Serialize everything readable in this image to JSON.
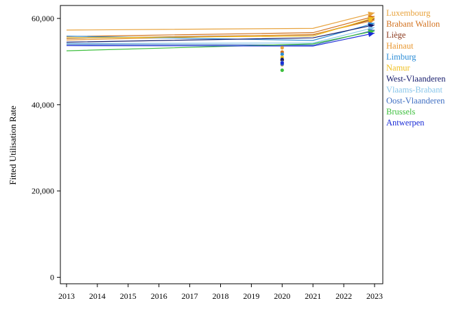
{
  "chart_data": {
    "type": "line",
    "title": "",
    "xlabel": "",
    "ylabel": "Fitted Utilisation Rate",
    "xlim": [
      2013,
      2023
    ],
    "ylim": [
      -1500,
      63000
    ],
    "x_ticks": [
      2013,
      2014,
      2015,
      2016,
      2017,
      2018,
      2019,
      2020,
      2021,
      2022,
      2023
    ],
    "y_ticks": [
      {
        "value": 0,
        "label": "0"
      },
      {
        "value": 20000,
        "label": "20,000"
      },
      {
        "value": 40000,
        "label": "40,000"
      },
      {
        "value": 60000,
        "label": "60,000"
      }
    ],
    "grid": false,
    "legend_position": "right",
    "series": [
      {
        "name": "Luxembourg",
        "color": "#E8A33D",
        "x": [
          2013,
          2021,
          2023
        ],
        "y": [
          57300,
          57700,
          61300
        ],
        "point_2020": 53200
      },
      {
        "name": "Brabant Wallon",
        "color": "#D2711E",
        "x": [
          2013,
          2021,
          2023
        ],
        "y": [
          55800,
          56700,
          60500
        ],
        "point_2020": 52200
      },
      {
        "name": "Liège",
        "color": "#8B3A1E",
        "x": [
          2013,
          2021,
          2023
        ],
        "y": [
          55400,
          56200,
          59900
        ],
        "point_2020": 50300
      },
      {
        "name": "Hainaut",
        "color": "#E8962E",
        "x": [
          2013,
          2021,
          2023
        ],
        "y": [
          55000,
          56300,
          59600
        ],
        "point_2020": 49300
      },
      {
        "name": "Limburg",
        "color": "#2B8CD6",
        "x": [
          2013,
          2021,
          2023
        ],
        "y": [
          55900,
          54900,
          58900
        ],
        "point_2020": 51700
      },
      {
        "name": "Namur",
        "color": "#F0C020",
        "x": [
          2013,
          2021,
          2023
        ],
        "y": [
          55500,
          55900,
          60200
        ],
        "point_2020": 51000
      },
      {
        "name": "West-Vlaanderen",
        "color": "#151B6B",
        "x": [
          2013,
          2021,
          2023
        ],
        "y": [
          54500,
          55500,
          58500
        ],
        "point_2020": 50500
      },
      {
        "name": "Vlaams-Brabant",
        "color": "#87C5EA",
        "x": [
          2013,
          2021,
          2023
        ],
        "y": [
          54200,
          54300,
          57900
        ],
        "point_2020": 49800
      },
      {
        "name": "Oost-Vlaanderen",
        "color": "#3F6FC2",
        "x": [
          2013,
          2021,
          2023
        ],
        "y": [
          54000,
          53800,
          57300
        ],
        "point_2020": 49400
      },
      {
        "name": "Brussels",
        "color": "#3DBF3D",
        "x": [
          2013,
          2021,
          2023
        ],
        "y": [
          52500,
          54100,
          57100
        ],
        "point_2020": 48000
      },
      {
        "name": "Antwerpen",
        "color": "#1A2BD6",
        "x": [
          2013,
          2021,
          2023
        ],
        "y": [
          53700,
          53600,
          56600
        ],
        "point_2020": 49700
      }
    ]
  }
}
